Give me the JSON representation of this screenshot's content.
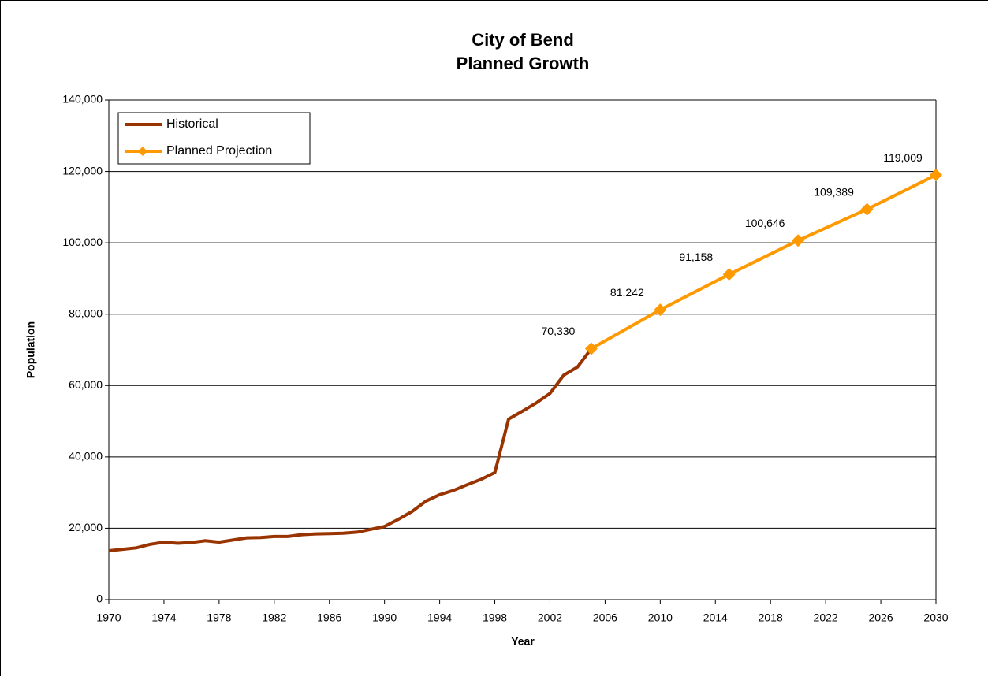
{
  "chart_data": {
    "type": "line",
    "title": [
      "City of Bend",
      "Planned Growth"
    ],
    "x_label": "Year",
    "y_label": "Population",
    "series": [
      {
        "name": "Historical",
        "color": "#993300",
        "x": [
          1970,
          1971,
          1972,
          1973,
          1974,
          1975,
          1976,
          1977,
          1978,
          1979,
          1980,
          1981,
          1982,
          1983,
          1984,
          1985,
          1986,
          1987,
          1988,
          1989,
          1990,
          1991,
          1992,
          1993,
          1994,
          1995,
          1996,
          1997,
          1998,
          1999,
          2000,
          2001,
          2002,
          2003,
          2004,
          2005
        ],
        "values": [
          13700,
          14100,
          14500,
          15500,
          16100,
          15800,
          16000,
          16500,
          16100,
          16700,
          17300,
          17400,
          17700,
          17700,
          18200,
          18400,
          18500,
          18600,
          18900,
          19700,
          20500,
          22500,
          24700,
          27600,
          29400,
          30600,
          32200,
          33700,
          35600,
          50600,
          52800,
          55100,
          57800,
          62900,
          65200,
          70330
        ]
      },
      {
        "name": "Planned Projection",
        "color": "#FF9900",
        "markers": true,
        "x": [
          2005,
          2010,
          2015,
          2020,
          2025,
          2030
        ],
        "values": [
          70330,
          81242,
          91158,
          100646,
          109389,
          119009
        ],
        "value_labels": [
          "70,330",
          "81,242",
          "91,158",
          "100,646",
          "109,389",
          "119,009"
        ]
      }
    ],
    "xlim": [
      1970,
      2030
    ],
    "xticks": [
      1970,
      1974,
      1978,
      1982,
      1986,
      1990,
      1994,
      1998,
      2002,
      2006,
      2010,
      2014,
      2018,
      2022,
      2026,
      2030
    ],
    "ylim": [
      0,
      140000
    ],
    "yticks": [
      0,
      {
        "value": 20000,
        "label": "20,000"
      },
      {
        "value": 40000,
        "label": "40,000"
      },
      {
        "value": 60000,
        "label": "60,000"
      },
      {
        "value": 80000,
        "label": "80,000"
      },
      {
        "value": 100000,
        "label": "100,000"
      },
      {
        "value": 120000,
        "label": "120,000"
      },
      {
        "value": 140000,
        "label": "140,000"
      }
    ],
    "grid": true,
    "legend": "top-left"
  }
}
